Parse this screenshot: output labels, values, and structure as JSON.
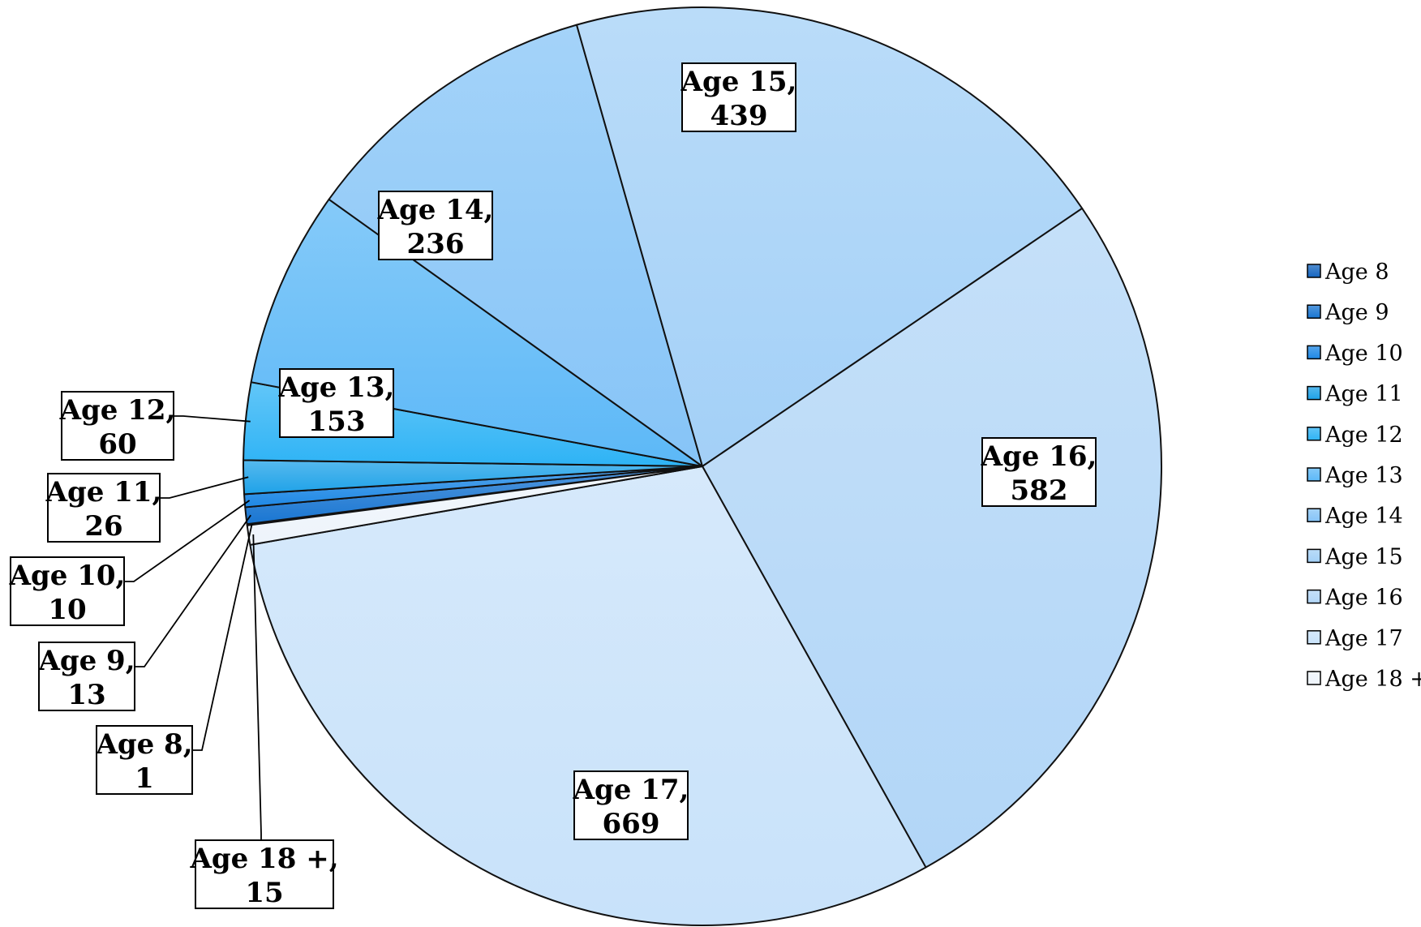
{
  "chart_data": {
    "type": "pie",
    "title": "",
    "categories": [
      "Age 8",
      "Age 9",
      "Age 10",
      "Age 11",
      "Age 12",
      "Age 13",
      "Age 14",
      "Age 15",
      "Age 16",
      "Age 17",
      "Age 18 +"
    ],
    "values": [
      1,
      13,
      10,
      26,
      60,
      153,
      236,
      439,
      582,
      669,
      15
    ],
    "data_labels": [
      [
        "Age 8,",
        "1"
      ],
      [
        "Age 9,",
        "13"
      ],
      [
        "Age 10,",
        "10"
      ],
      [
        "Age 11,",
        "26"
      ],
      [
        "Age 12,",
        "60"
      ],
      [
        "Age 13,",
        "153"
      ],
      [
        "Age 14,",
        "236"
      ],
      [
        "Age 15,",
        "439"
      ],
      [
        "Age 16,",
        "582"
      ],
      [
        "Age 17,",
        "669"
      ],
      [
        "Age 18 +,",
        "15"
      ]
    ],
    "colors": [
      "#1565c0",
      "#1976d2",
      "#1e88e5",
      "#1ea2e8",
      "#2eb3f5",
      "#5cb8f7",
      "#86c4f7",
      "#a3d0f7",
      "#b2d6f7",
      "#c8e2fa",
      "#eef4fb"
    ],
    "legend": {
      "position": "right",
      "entries": [
        "Age 8",
        "Age 9",
        "Age 10",
        "Age 11",
        "Age 12",
        "Age 13",
        "Age 14",
        "Age 15",
        "Age 16",
        "Age 17",
        "Age 18 +"
      ]
    }
  }
}
